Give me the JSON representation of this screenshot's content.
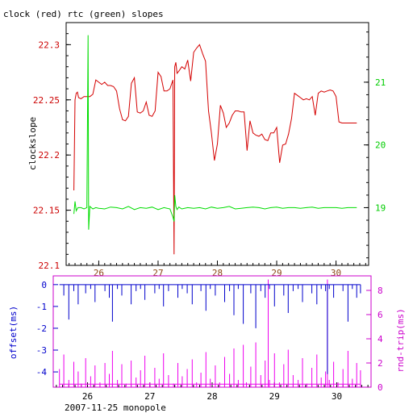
{
  "chart_data": [
    {
      "type": "line",
      "title": "clock (red) rtc (green) slopes",
      "xlabel": "",
      "ylabel": "clockslope",
      "x_ticks": [
        "26",
        "27",
        "28",
        "29",
        "30"
      ],
      "x_lim": [
        25.45,
        30.55
      ],
      "y_left_lim": [
        22.1,
        22.32
      ],
      "y_left_ticks": [
        "22.3",
        "22.25",
        "22.2",
        "22.15",
        "22.1"
      ],
      "y_left_tick_values": [
        22.3,
        22.25,
        22.2,
        22.15,
        22.1
      ],
      "y_right_lim": [
        18.08,
        21.95
      ],
      "y_right_ticks": [
        "21",
        "20",
        "19"
      ],
      "y_right_tick_values": [
        21,
        20,
        19
      ],
      "colors": {
        "clock": "#d40000",
        "rtc": "#00dd00",
        "left_ticks": "#cc0000",
        "right_ticks": "#00cc00"
      },
      "series": [
        {
          "axis": "left",
          "color": "#d40000",
          "x": [
            25.58,
            25.6,
            25.62,
            25.64,
            25.66,
            25.7,
            25.75,
            25.8,
            25.85,
            25.9,
            25.95,
            26.0,
            26.05,
            26.1,
            26.15,
            26.2,
            26.25,
            26.3,
            26.35,
            26.4,
            26.45,
            26.5,
            26.55,
            26.6,
            26.65,
            26.7,
            26.75,
            26.8,
            26.85,
            26.9,
            26.95,
            27.0,
            27.05,
            27.1,
            27.15,
            27.2,
            27.25,
            27.27,
            27.28,
            27.3,
            27.32,
            27.35,
            27.4,
            27.45,
            27.5,
            27.55,
            27.6,
            27.65,
            27.7,
            27.75,
            27.8,
            27.85,
            27.9,
            27.95,
            28.0,
            28.05,
            28.1,
            28.15,
            28.2,
            28.25,
            28.3,
            28.35,
            28.4,
            28.45,
            28.5,
            28.55,
            28.6,
            28.65,
            28.7,
            28.75,
            28.8,
            28.85,
            28.9,
            28.95,
            29.0,
            29.05,
            29.1,
            29.15,
            29.2,
            29.25,
            29.3,
            29.35,
            29.4,
            29.45,
            29.5,
            29.55,
            29.6,
            29.65,
            29.7,
            29.75,
            29.8,
            29.85,
            29.9,
            29.95,
            30.0,
            30.05,
            30.1,
            30.15,
            30.2,
            30.25,
            30.3,
            30.35
          ],
          "y": [
            22.168,
            22.25,
            22.256,
            22.257,
            22.252,
            22.251,
            22.253,
            22.253,
            22.253,
            22.255,
            22.268,
            22.266,
            22.264,
            22.266,
            22.263,
            22.263,
            22.262,
            22.258,
            22.242,
            22.232,
            22.231,
            22.235,
            22.265,
            22.27,
            22.239,
            22.238,
            22.24,
            22.248,
            22.236,
            22.235,
            22.24,
            22.275,
            22.271,
            22.258,
            22.258,
            22.26,
            22.268,
            22.11,
            22.28,
            22.284,
            22.274,
            22.276,
            22.28,
            22.278,
            22.286,
            22.267,
            22.293,
            22.297,
            22.3,
            22.292,
            22.285,
            22.24,
            22.22,
            22.195,
            22.21,
            22.245,
            22.238,
            22.225,
            22.229,
            22.236,
            22.24,
            22.24,
            22.239,
            22.239,
            22.204,
            22.231,
            22.22,
            22.218,
            22.217,
            22.219,
            22.214,
            22.213,
            22.22,
            22.22,
            22.225,
            22.193,
            22.209,
            22.21,
            22.219,
            22.233,
            22.256,
            22.254,
            22.252,
            22.25,
            22.251,
            22.25,
            22.253,
            22.236,
            22.256,
            22.258,
            22.257,
            22.258,
            22.259,
            22.258,
            22.253,
            22.23,
            22.229,
            22.229,
            22.229,
            22.229,
            22.229,
            22.229
          ]
        },
        {
          "axis": "right",
          "color": "#00dd00",
          "x": [
            25.58,
            25.6,
            25.62,
            25.65,
            25.7,
            25.75,
            25.8,
            25.82,
            25.83,
            25.85,
            25.9,
            25.95,
            26.0,
            26.1,
            26.2,
            26.3,
            26.4,
            26.5,
            26.6,
            26.7,
            26.8,
            26.9,
            27.0,
            27.1,
            27.2,
            27.25,
            27.27,
            27.28,
            27.3,
            27.32,
            27.35,
            27.4,
            27.5,
            27.6,
            27.7,
            27.8,
            27.9,
            28.0,
            28.1,
            28.2,
            28.3,
            28.4,
            28.5,
            28.6,
            28.7,
            28.8,
            28.9,
            29.0,
            29.1,
            29.2,
            29.3,
            29.4,
            29.5,
            29.6,
            29.7,
            29.8,
            29.9,
            30.0,
            30.1,
            30.2,
            30.3,
            30.35
          ],
          "y": [
            18.9,
            19.1,
            18.95,
            19.0,
            19.0,
            18.98,
            19.0,
            21.75,
            18.65,
            19.02,
            18.98,
            19.0,
            18.99,
            18.98,
            19.01,
            19.0,
            18.98,
            19.02,
            18.97,
            19.0,
            18.99,
            19.01,
            18.97,
            19.0,
            18.98,
            18.85,
            18.78,
            19.2,
            19.02,
            18.97,
            19.01,
            18.98,
            19.0,
            18.99,
            19.0,
            18.98,
            19.01,
            18.99,
            19.0,
            19.02,
            18.98,
            18.99,
            19.0,
            19.01,
            19.0,
            18.98,
            19.0,
            19.01,
            18.99,
            19.0,
            19.0,
            18.99,
            19.0,
            19.01,
            18.99,
            19.0,
            19.0,
            19.0,
            18.99,
            19.0,
            19.0,
            19.0
          ]
        }
      ]
    },
    {
      "type": "line",
      "title": "",
      "xlabel": "2007-11-25 monopole",
      "ylabel_left": "offset(ms)",
      "ylabel_right": "rnd-trip(ms)",
      "x_ticks": [
        "26",
        "27",
        "28",
        "29",
        "30"
      ],
      "x_lim": [
        25.45,
        30.55
      ],
      "y_left_lim": [
        -4.7,
        0.4
      ],
      "y_left_ticks": [
        "0",
        "-1",
        "-2",
        "-3",
        "-4"
      ],
      "y_left_tick_values": [
        0,
        -1,
        -2,
        -3,
        -4
      ],
      "y_right_lim": [
        0,
        9.2
      ],
      "y_right_ticks": [
        "8",
        "6",
        "4",
        "2",
        "0"
      ],
      "y_right_tick_values": [
        8,
        6,
        4,
        2,
        0
      ],
      "colors": {
        "offset": "#0000cc",
        "roundtrip": "#ee00ee",
        "left_axis": "#0000cc",
        "right_axis": "#cc00cc"
      },
      "series": [
        {
          "name": "offset(ms)",
          "axis": "left",
          "color": "#0000cc",
          "x": [
            25.55,
            25.62,
            25.7,
            25.78,
            25.85,
            25.9,
            25.97,
            26.05,
            26.12,
            26.2,
            26.28,
            26.35,
            26.4,
            26.48,
            26.55,
            26.62,
            26.7,
            26.78,
            26.85,
            26.92,
            27.0,
            27.08,
            27.15,
            27.22,
            27.3,
            27.38,
            27.45,
            27.52,
            27.6,
            27.68,
            27.75,
            27.82,
            27.9,
            27.97,
            28.05,
            28.12,
            28.2,
            28.28,
            28.35,
            28.42,
            28.5,
            28.55,
            28.62,
            28.7,
            28.78,
            28.85,
            28.92,
            29.0,
            29.08,
            29.15,
            29.22,
            29.3,
            29.38,
            29.45,
            29.52,
            29.6,
            29.68,
            29.75,
            29.82,
            29.85,
            29.88,
            29.95,
            30.02,
            30.1,
            30.18,
            30.25,
            30.32,
            30.38
          ],
          "y": [
            0.0,
            -0.5,
            -1.6,
            -0.3,
            -0.9,
            0.0,
            -0.4,
            -0.2,
            -0.8,
            0.0,
            -0.3,
            -0.6,
            -1.7,
            -0.2,
            -0.5,
            0.0,
            -0.9,
            -0.3,
            -0.2,
            -0.7,
            0.0,
            -0.4,
            -0.2,
            -1.0,
            -0.3,
            0.0,
            -0.6,
            -0.2,
            -0.4,
            -0.9,
            0.0,
            -0.3,
            -1.2,
            -0.2,
            -0.5,
            0.0,
            -0.8,
            -0.3,
            -1.4,
            -0.2,
            -1.8,
            0.0,
            -0.4,
            -2.0,
            -0.3,
            -0.6,
            -0.2,
            -1.0,
            0.0,
            -0.5,
            -1.3,
            -0.3,
            -0.2,
            -0.8,
            0.0,
            -0.4,
            -0.9,
            -0.2,
            -0.3,
            -4.1,
            -0.2,
            -0.6,
            0.0,
            -0.3,
            -1.7,
            -0.2,
            -0.6,
            -0.4
          ]
        },
        {
          "name": "rnd-trip(ms)",
          "axis": "right",
          "color": "#ee00ee",
          "x": [
            25.55,
            25.62,
            25.7,
            25.78,
            25.85,
            25.9,
            25.97,
            26.05,
            26.12,
            26.2,
            26.28,
            26.35,
            26.4,
            26.48,
            26.55,
            26.62,
            26.7,
            26.78,
            26.85,
            26.92,
            27.0,
            27.08,
            27.15,
            27.22,
            27.3,
            27.38,
            27.45,
            27.52,
            27.6,
            27.68,
            27.75,
            27.82,
            27.9,
            27.97,
            28.05,
            28.12,
            28.2,
            28.28,
            28.35,
            28.42,
            28.5,
            28.55,
            28.62,
            28.7,
            28.78,
            28.85,
            28.9,
            28.92,
            29.0,
            29.08,
            29.15,
            29.22,
            29.3,
            29.38,
            29.45,
            29.52,
            29.6,
            29.68,
            29.75,
            29.82,
            29.85,
            29.88,
            29.95,
            30.02,
            30.1,
            30.18,
            30.25,
            30.32,
            30.38
          ],
          "y": [
            1.5,
            2.7,
            0.6,
            2.1,
            1.3,
            0.3,
            2.4,
            0.9,
            1.8,
            0.4,
            2.0,
            1.1,
            3.0,
            0.6,
            1.9,
            0.3,
            2.2,
            0.8,
            1.4,
            2.6,
            0.4,
            1.6,
            0.7,
            2.8,
            1.0,
            0.3,
            2.0,
            0.9,
            1.5,
            2.3,
            0.4,
            1.2,
            2.9,
            0.7,
            1.8,
            0.4,
            2.5,
            1.1,
            3.2,
            0.6,
            3.5,
            0.4,
            1.7,
            3.7,
            1.0,
            2.2,
            8.9,
            0.6,
            2.8,
            0.4,
            1.9,
            3.1,
            1.0,
            0.6,
            2.4,
            0.3,
            1.6,
            2.7,
            0.8,
            1.3,
            8.9,
            0.6,
            2.1,
            0.4,
            1.5,
            3.0,
            0.7,
            2.0,
            1.4
          ]
        }
      ]
    }
  ]
}
